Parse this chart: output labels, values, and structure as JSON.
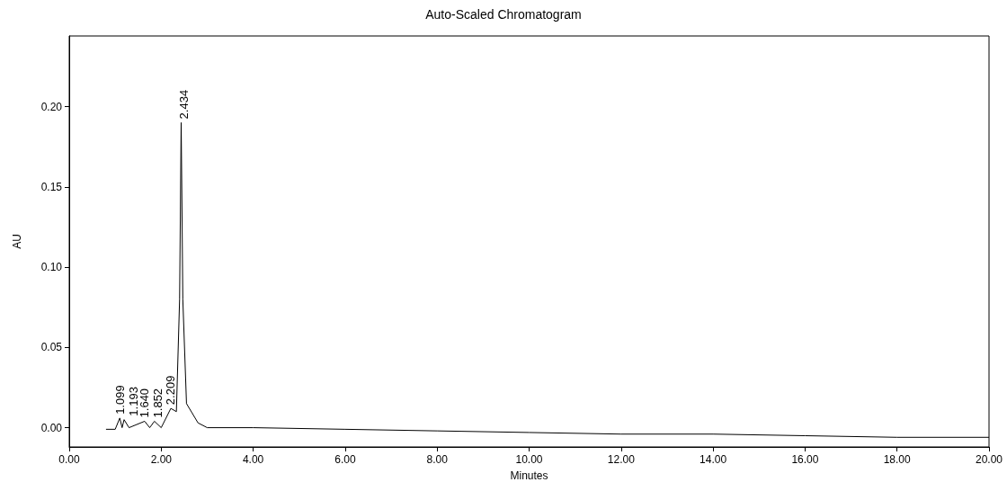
{
  "chart_data": {
    "type": "line",
    "title": "Auto-Scaled Chromatogram",
    "xlabel": "Minutes",
    "ylabel": "AU",
    "x": [
      0.8,
      1.0,
      1.099,
      1.15,
      1.193,
      1.3,
      1.64,
      1.75,
      1.852,
      2.0,
      2.209,
      2.33,
      2.4,
      2.434,
      2.47,
      2.55,
      2.8,
      3.0,
      4.0,
      6.0,
      8.0,
      10.0,
      12.0,
      14.0,
      16.0,
      18.0,
      20.0
    ],
    "series": [
      {
        "color": "#000000",
        "values": [
          -0.001,
          -0.001,
          0.006,
          0.0,
          0.005,
          0.0,
          0.004,
          0.0,
          0.004,
          0.0,
          0.012,
          0.01,
          0.08,
          0.19,
          0.08,
          0.015,
          0.003,
          0.0,
          0.0,
          -0.001,
          -0.002,
          -0.003,
          -0.004,
          -0.004,
          -0.005,
          -0.006,
          -0.006
        ]
      }
    ],
    "xlim": [
      0,
      20
    ],
    "xticks": [
      {
        "value": 0,
        "label": "0.00"
      },
      {
        "value": 2,
        "label": "2.00"
      },
      {
        "value": 4,
        "label": "4.00"
      },
      {
        "value": 6,
        "label": "6.00"
      },
      {
        "value": 8,
        "label": "8.00"
      },
      {
        "value": 10,
        "label": "10.00"
      },
      {
        "value": 12,
        "label": "12.00"
      },
      {
        "value": 14,
        "label": "14.00"
      },
      {
        "value": 16,
        "label": "16.00"
      },
      {
        "value": 18,
        "label": "18.00"
      },
      {
        "value": 20,
        "label": "20.00"
      }
    ],
    "ylim": [
      -0.012,
      0.244
    ],
    "yticks": [
      {
        "value": 0,
        "label": "0.00"
      },
      {
        "value": 0.05,
        "label": "0.05"
      },
      {
        "value": 0.1,
        "label": "0.10"
      },
      {
        "value": 0.15,
        "label": "0.15"
      },
      {
        "value": 0.2,
        "label": "0.20"
      }
    ],
    "annotations": [
      {
        "text": "1.099",
        "x": 1.099,
        "y": 0.006
      },
      {
        "text": "1.193",
        "x": 1.193,
        "y": 0.005
      },
      {
        "text": "1.640",
        "x": 1.64,
        "y": 0.004
      },
      {
        "text": "1.852",
        "x": 1.852,
        "y": 0.004
      },
      {
        "text": "2.209",
        "x": 2.209,
        "y": 0.012
      },
      {
        "text": "2.434",
        "x": 2.434,
        "y": 0.19
      }
    ],
    "grid": false,
    "marker": "none",
    "line_style": "solid"
  }
}
